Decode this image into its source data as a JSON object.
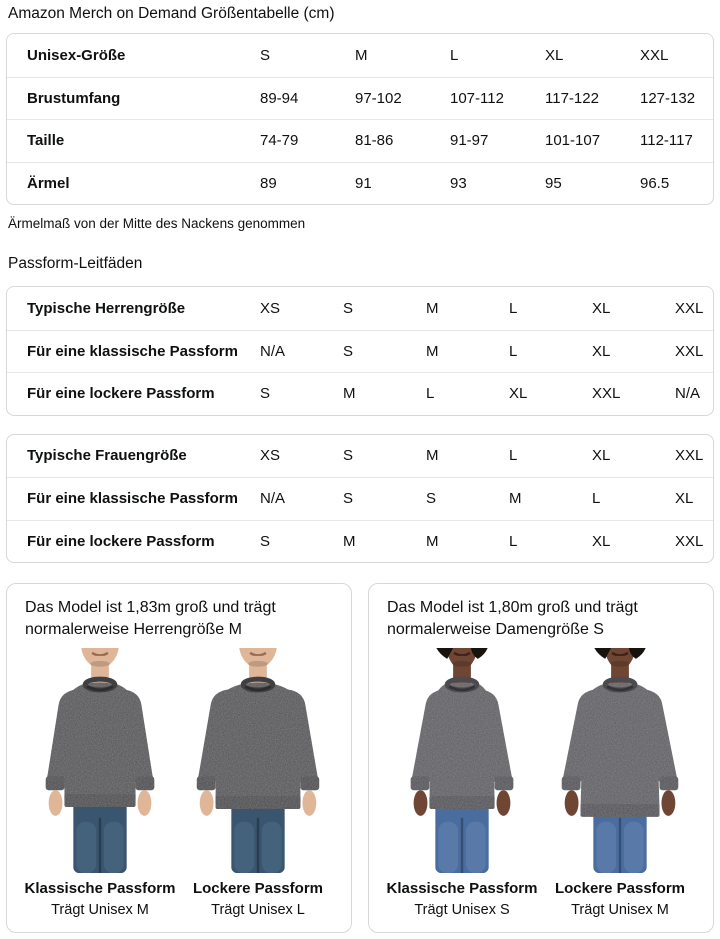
{
  "page": {
    "title": "Amazon Merch on Demand Größentabelle (cm)",
    "note": "Ärmelmaß von der Mitte des Nackens genommen",
    "fit_guides_title": "Passform-Leitfäden"
  },
  "size_table": {
    "header_label": "Unisex-Größe",
    "sizes": [
      "S",
      "M",
      "L",
      "XL",
      "XXL"
    ],
    "rows": [
      {
        "label": "Brustumfang",
        "values": [
          "89-94",
          "97-102",
          "107-112",
          "117-122",
          "127-132"
        ]
      },
      {
        "label": "Taille",
        "values": [
          "74-79",
          "81-86",
          "91-97",
          "101-107",
          "112-117"
        ]
      },
      {
        "label": "Ärmel",
        "values": [
          "89",
          "91",
          "93",
          "95",
          "96.5"
        ]
      }
    ]
  },
  "fit_tables": [
    {
      "rows": [
        {
          "label": "Typische Herrengröße",
          "values": [
            "XS",
            "S",
            "M",
            "L",
            "XL",
            "XXL"
          ]
        },
        {
          "label": "Für eine klassische Passform",
          "values": [
            "N/A",
            "S",
            "M",
            "L",
            "XL",
            "XXL"
          ]
        },
        {
          "label": "Für eine lockere Passform",
          "values": [
            "S",
            "M",
            "L",
            "XL",
            "XXL",
            "N/A"
          ]
        }
      ]
    },
    {
      "rows": [
        {
          "label": "Typische Frauengröße",
          "values": [
            "XS",
            "S",
            "M",
            "L",
            "XL",
            "XXL"
          ]
        },
        {
          "label": "Für eine klassische Passform",
          "values": [
            "N/A",
            "S",
            "S",
            "M",
            "L",
            "XL"
          ]
        },
        {
          "label": "Für eine lockere Passform",
          "values": [
            "S",
            "M",
            "M",
            "L",
            "XL",
            "XXL"
          ]
        }
      ]
    }
  ],
  "model_cards": [
    {
      "description": "Das Model ist 1,83m groß und trägt normalerweise Herrengröße M",
      "figures": [
        {
          "fit_label": "Klassische Passform",
          "size_label": "Trägt Unisex M",
          "variant": "male-classic"
        },
        {
          "fit_label": "Lockere Passform",
          "size_label": "Trägt Unisex L",
          "variant": "male-loose"
        }
      ]
    },
    {
      "description": "Das Model ist 1,80m groß und trägt normalerweise Damengröße S",
      "figures": [
        {
          "fit_label": "Klassische Passform",
          "size_label": "Trägt Unisex S",
          "variant": "female-classic"
        },
        {
          "fit_label": "Lockere Passform",
          "size_label": "Trägt Unisex M",
          "variant": "female-loose"
        }
      ]
    }
  ],
  "figure_styles": {
    "male": {
      "skin": "#e0b698",
      "shirt": "#4d4d51",
      "trim": "#404044",
      "jeans": "#3a5570",
      "jeans_light": "#5d7a96",
      "mouth": "#996a55"
    },
    "female": {
      "skin": "#6f4533",
      "shirt": "#58585d",
      "trim": "#4a4a4f",
      "jeans": "#4a6da0",
      "jeans_light": "#7591bb",
      "mouth": "#3c2218",
      "hair": "#17120e"
    }
  },
  "colors": {
    "text": "#0f1111",
    "table_border": "#d5d9d9",
    "row_divider": "#e7e7e7",
    "background": "#ffffff"
  }
}
